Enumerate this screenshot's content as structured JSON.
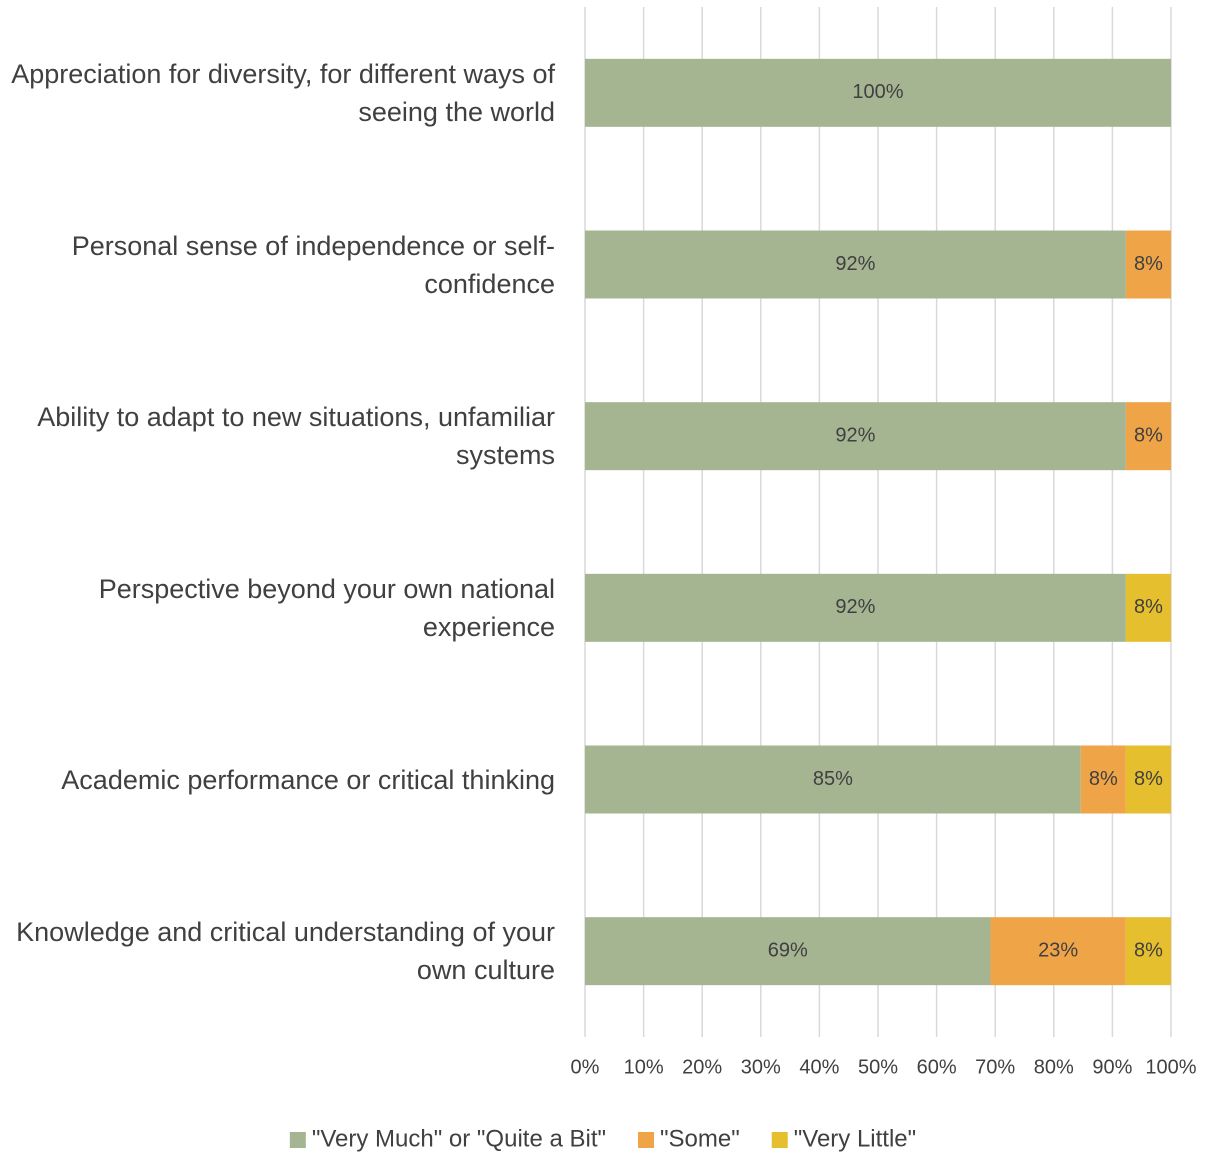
{
  "chart_data": {
    "type": "stacked_bar_horizontal",
    "categories": [
      "Appreciation for diversity, for different ways of seeing the world",
      "Personal sense of independence or self-confidence",
      "Ability to adapt to new situations, unfamiliar systems",
      "Perspective beyond your own national experience",
      "Academic performance or critical thinking",
      "Knowledge and critical understanding of your own culture"
    ],
    "series": [
      {
        "name": "\"Very Much\" or \"Quite a Bit\"",
        "color": "#a5b592",
        "values": [
          100,
          92.3,
          92.3,
          92.3,
          84.6,
          69.2
        ],
        "value_labels": [
          "100%",
          "92%",
          "92%",
          "92%",
          "85%",
          "69%"
        ]
      },
      {
        "name": "\"Some\"",
        "color": "#f0a448",
        "values": [
          null,
          7.7,
          7.7,
          null,
          7.7,
          23.1
        ],
        "value_labels": [
          null,
          "8%",
          "8%",
          null,
          "8%",
          "23%"
        ]
      },
      {
        "name": "\"Very Little\"",
        "color": "#e6bf2e",
        "values": [
          null,
          null,
          null,
          7.7,
          7.7,
          7.7
        ],
        "value_labels": [
          null,
          null,
          null,
          "8%",
          "8%",
          "8%"
        ]
      }
    ],
    "xlim": [
      0,
      100
    ],
    "xticks": [
      {
        "value": 0,
        "label": "0%"
      },
      {
        "value": 10,
        "label": "10%"
      },
      {
        "value": 20,
        "label": "20%"
      },
      {
        "value": 30,
        "label": "30%"
      },
      {
        "value": 40,
        "label": "40%"
      },
      {
        "value": 50,
        "label": "50%"
      },
      {
        "value": 60,
        "label": "60%"
      },
      {
        "value": 70,
        "label": "70%"
      },
      {
        "value": 80,
        "label": "80%"
      },
      {
        "value": 90,
        "label": "90%"
      },
      {
        "value": 100,
        "label": "100%"
      }
    ],
    "grid": true,
    "legend": "bottom"
  }
}
